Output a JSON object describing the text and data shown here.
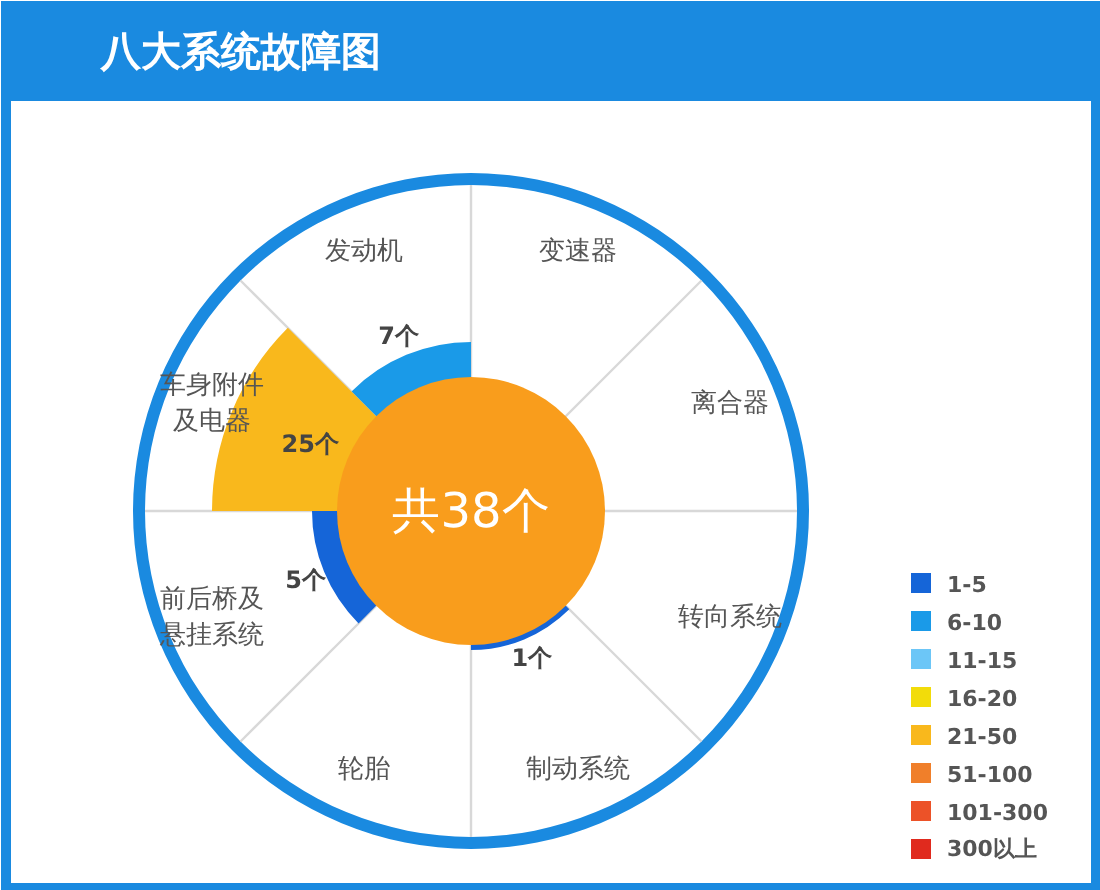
{
  "chart_data": {
    "type": "other",
    "title": "八大系统故障图",
    "categories": [
      "变速器",
      "离合器",
      "转向系统",
      "制动系统",
      "轮胎",
      "前后桥及悬挂系统",
      "车身附件及电器",
      "发动机"
    ],
    "series": [
      {
        "name": "1-5",
        "color": "#1565d8",
        "values": [
          null,
          null,
          null,
          1,
          null,
          5,
          null,
          null
        ],
        "value_labels": [
          null,
          null,
          null,
          "1个",
          null,
          "5个",
          null,
          null
        ]
      },
      {
        "name": "6-10",
        "color": "#1a9ae8",
        "values": [
          null,
          null,
          null,
          null,
          null,
          null,
          null,
          7
        ],
        "value_labels": [
          null,
          null,
          null,
          null,
          null,
          null,
          null,
          "7个"
        ]
      },
      {
        "name": "11-15",
        "color": "#6cc6f7",
        "values": [
          null,
          null,
          null,
          null,
          null,
          null,
          null,
          null
        ]
      },
      {
        "name": "16-20",
        "color": "#f2dc0a",
        "values": [
          null,
          null,
          null,
          null,
          null,
          null,
          null,
          null
        ]
      },
      {
        "name": "21-50",
        "color": "#f9b81c",
        "values": [
          null,
          null,
          null,
          null,
          null,
          null,
          25,
          null
        ],
        "value_labels": [
          null,
          null,
          null,
          null,
          null,
          null,
          "25个",
          null
        ]
      },
      {
        "name": "51-100",
        "color": "#f07f2a",
        "values": [
          null,
          null,
          null,
          null,
          null,
          null,
          null,
          null
        ]
      },
      {
        "name": "101-300",
        "color": "#ec5228",
        "values": [
          null,
          null,
          null,
          null,
          null,
          null,
          null,
          null
        ]
      },
      {
        "name": "300以上",
        "color": "#e02a1e",
        "values": [
          null,
          null,
          null,
          null,
          null,
          null,
          null,
          null
        ]
      }
    ],
    "annotations": [
      "共38个"
    ],
    "legend": "bottom right"
  }
}
